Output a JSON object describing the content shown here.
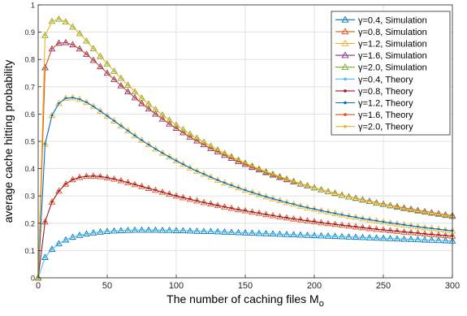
{
  "chart_data": {
    "type": "line",
    "title": "",
    "xlabel": "The number of caching files M",
    "xlabel_sub": "o",
    "ylabel": "average cache hitting probability",
    "xlim": [
      0,
      300
    ],
    "ylim": [
      0,
      1
    ],
    "xticks": [
      0,
      50,
      100,
      150,
      200,
      250,
      300
    ],
    "yticks": [
      0,
      0.1,
      0.2,
      0.3,
      0.4,
      0.5,
      0.6,
      0.7,
      0.8,
      0.9,
      1
    ],
    "grid": true,
    "legend_position": "top-right",
    "x_points_note": "values sampled at M_o = 0, 5, 10, ..., 300",
    "x": [
      0,
      5,
      10,
      15,
      20,
      25,
      30,
      35,
      40,
      45,
      50,
      55,
      60,
      65,
      70,
      75,
      80,
      85,
      90,
      95,
      100,
      105,
      110,
      115,
      120,
      125,
      130,
      135,
      140,
      145,
      150,
      155,
      160,
      165,
      170,
      175,
      180,
      185,
      190,
      195,
      200,
      205,
      210,
      215,
      220,
      225,
      230,
      235,
      240,
      245,
      250,
      255,
      260,
      265,
      270,
      275,
      280,
      285,
      290,
      295,
      300
    ],
    "series": [
      {
        "name": "γ=0.4, Simulation",
        "color": "#0072BD",
        "marker": "triangle",
        "values": [
          0,
          0.075,
          0.105,
          0.125,
          0.139,
          0.149,
          0.156,
          0.161,
          0.165,
          0.168,
          0.17,
          0.172,
          0.173,
          0.174,
          0.175,
          0.175,
          0.175,
          0.175,
          0.174,
          0.174,
          0.173,
          0.173,
          0.172,
          0.171,
          0.17,
          0.17,
          0.169,
          0.168,
          0.167,
          0.166,
          0.165,
          0.164,
          0.163,
          0.162,
          0.161,
          0.16,
          0.159,
          0.158,
          0.157,
          0.156,
          0.155,
          0.154,
          0.153,
          0.152,
          0.151,
          0.15,
          0.149,
          0.148,
          0.147,
          0.146,
          0.145,
          0.144,
          0.143,
          0.142,
          0.141,
          0.14,
          0.139,
          0.138,
          0.137,
          0.136,
          0.135
        ]
      },
      {
        "name": "γ=0.8, Simulation",
        "color": "#D95319",
        "marker": "triangle",
        "values": [
          0,
          0.205,
          0.278,
          0.318,
          0.344,
          0.36,
          0.368,
          0.372,
          0.373,
          0.371,
          0.367,
          0.362,
          0.356,
          0.349,
          0.342,
          0.335,
          0.328,
          0.321,
          0.314,
          0.307,
          0.3,
          0.294,
          0.288,
          0.282,
          0.276,
          0.271,
          0.265,
          0.26,
          0.255,
          0.25,
          0.246,
          0.241,
          0.237,
          0.232,
          0.228,
          0.224,
          0.22,
          0.216,
          0.213,
          0.209,
          0.206,
          0.202,
          0.199,
          0.196,
          0.193,
          0.19,
          0.187,
          0.184,
          0.181,
          0.178,
          0.176,
          0.173,
          0.171,
          0.168,
          0.166,
          0.164,
          0.161,
          0.159,
          0.157,
          0.155,
          0.153
        ]
      },
      {
        "name": "γ=1.2, Simulation",
        "color": "#EDB120",
        "marker": "triangle",
        "values": [
          0,
          0.49,
          0.595,
          0.639,
          0.658,
          0.66,
          0.654,
          0.643,
          0.628,
          0.611,
          0.593,
          0.575,
          0.557,
          0.539,
          0.521,
          0.504,
          0.488,
          0.472,
          0.457,
          0.443,
          0.429,
          0.416,
          0.403,
          0.391,
          0.38,
          0.369,
          0.358,
          0.348,
          0.339,
          0.33,
          0.321,
          0.313,
          0.305,
          0.297,
          0.29,
          0.283,
          0.276,
          0.27,
          0.263,
          0.257,
          0.252,
          0.246,
          0.241,
          0.236,
          0.231,
          0.226,
          0.222,
          0.217,
          0.213,
          0.209,
          0.205,
          0.201,
          0.198,
          0.194,
          0.191,
          0.187,
          0.184,
          0.181,
          0.178,
          0.175,
          0.172
        ]
      },
      {
        "name": "γ=1.6, Simulation",
        "color": "#7E2F8E",
        "marker": "triangle",
        "values": [
          0,
          0.77,
          0.839,
          0.86,
          0.862,
          0.854,
          0.839,
          0.819,
          0.797,
          0.774,
          0.75,
          0.727,
          0.704,
          0.682,
          0.66,
          0.639,
          0.619,
          0.6,
          0.582,
          0.564,
          0.548,
          0.532,
          0.516,
          0.502,
          0.488,
          0.474,
          0.462,
          0.449,
          0.438,
          0.426,
          0.416,
          0.405,
          0.396,
          0.386,
          0.377,
          0.368,
          0.36,
          0.352,
          0.344,
          0.337,
          0.33,
          0.323,
          0.316,
          0.31,
          0.303,
          0.297,
          0.292,
          0.286,
          0.281,
          0.275,
          0.27,
          0.265,
          0.261,
          0.256,
          0.252,
          0.247,
          0.243,
          0.239,
          0.235,
          0.231,
          0.228
        ]
      },
      {
        "name": "γ=2.0, Simulation",
        "color": "#77AC30",
        "marker": "triangle",
        "values": [
          0,
          0.888,
          0.94,
          0.948,
          0.938,
          0.919,
          0.895,
          0.868,
          0.84,
          0.812,
          0.784,
          0.757,
          0.731,
          0.706,
          0.682,
          0.659,
          0.637,
          0.617,
          0.597,
          0.578,
          0.56,
          0.543,
          0.527,
          0.512,
          0.497,
          0.483,
          0.469,
          0.456,
          0.444,
          0.432,
          0.421,
          0.41,
          0.399,
          0.389,
          0.38,
          0.371,
          0.362,
          0.354,
          0.345,
          0.338,
          0.33,
          0.323,
          0.316,
          0.309,
          0.303,
          0.297,
          0.291,
          0.285,
          0.28,
          0.274,
          0.269,
          0.264,
          0.259,
          0.254,
          0.25,
          0.245,
          0.241,
          0.237,
          0.233,
          0.229,
          0.225
        ]
      },
      {
        "name": "γ=0.4, Theory",
        "color": "#4DBEEE",
        "marker": "dot",
        "ref": 0
      },
      {
        "name": "γ=0.8, Theory",
        "color": "#A2142F",
        "marker": "dot",
        "ref": 1
      },
      {
        "name": "γ=1.2, Theory",
        "color": "#0072BD",
        "marker": "dot",
        "ref": 2
      },
      {
        "name": "γ=1.6, Theory",
        "color": "#D95319",
        "marker": "dot",
        "ref": 3
      },
      {
        "name": "γ=2.0, Theory",
        "color": "#EDB120",
        "marker": "dot",
        "ref": 4
      }
    ]
  }
}
